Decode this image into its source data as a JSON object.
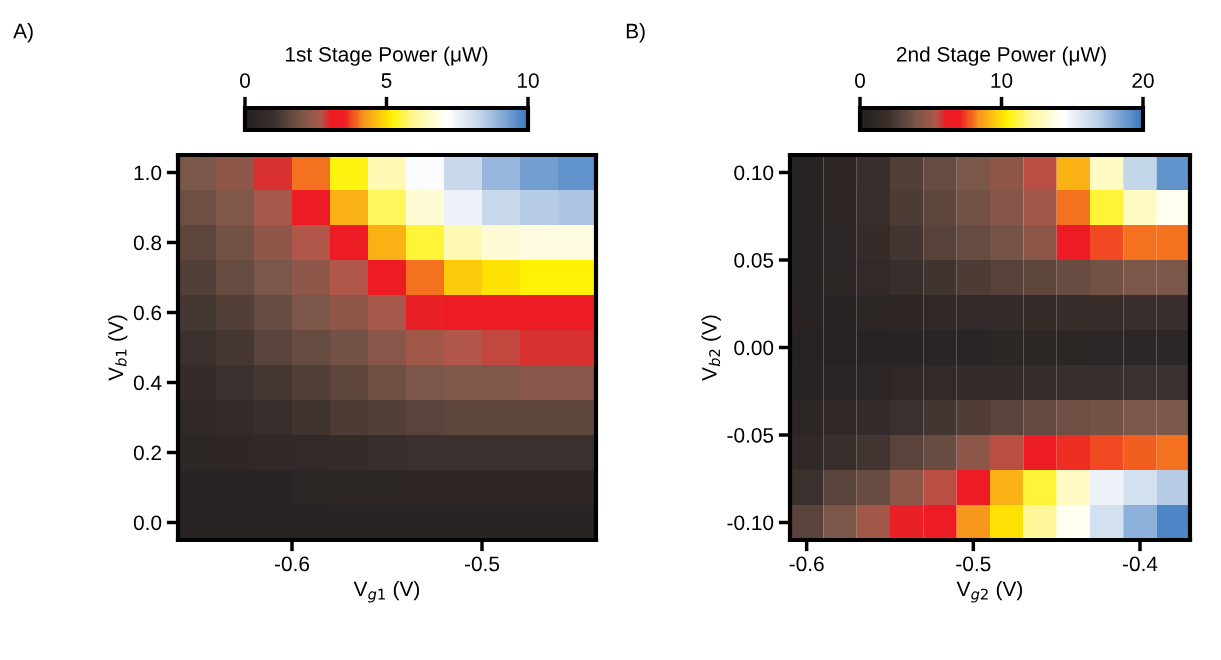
{
  "chart_data": [
    {
      "type": "heatmap",
      "title": "A)",
      "xlabel": "V$_{g1}$ (V)",
      "ylabel": "V$_{b1}$ (V)",
      "clabel": "1st Stage Power (μW)",
      "x": [
        -0.65,
        -0.63,
        -0.61,
        -0.59,
        -0.57,
        -0.55,
        -0.53,
        -0.51,
        -0.49,
        -0.47,
        -0.45
      ],
      "y": [
        0.0,
        0.1,
        0.2,
        0.3,
        0.4,
        0.5,
        0.6,
        0.7,
        0.8,
        0.9,
        1.0
      ],
      "cells": [
        [
          0.2,
          0.2,
          0.2,
          0.2,
          0.3,
          0.3,
          0.3,
          0.3,
          0.3,
          0.3,
          0.3
        ],
        [
          0.3,
          0.3,
          0.3,
          0.4,
          0.4,
          0.4,
          0.5,
          0.5,
          0.5,
          0.5,
          0.5
        ],
        [
          0.4,
          0.5,
          0.6,
          0.7,
          0.8,
          0.9,
          1.0,
          1.0,
          1.0,
          1.0,
          1.0
        ],
        [
          0.6,
          0.8,
          0.9,
          1.1,
          1.3,
          1.4,
          1.5,
          1.6,
          1.6,
          1.6,
          1.6
        ],
        [
          0.8,
          1.0,
          1.2,
          1.4,
          1.6,
          1.8,
          2.0,
          2.1,
          2.1,
          2.2,
          2.2
        ],
        [
          1.0,
          1.2,
          1.5,
          1.7,
          1.9,
          2.2,
          2.5,
          2.7,
          2.8,
          2.9,
          2.9
        ],
        [
          1.2,
          1.4,
          1.7,
          2.0,
          2.3,
          2.6,
          3.0,
          3.2,
          3.3,
          3.3,
          3.3
        ],
        [
          1.4,
          1.7,
          2.0,
          2.3,
          2.7,
          3.2,
          4.0,
          4.8,
          5.0,
          5.2,
          5.2
        ],
        [
          1.6,
          1.9,
          2.3,
          2.7,
          3.3,
          4.5,
          5.5,
          6.3,
          6.7,
          6.8,
          6.8
        ],
        [
          1.8,
          2.1,
          2.6,
          3.2,
          4.5,
          5.7,
          6.7,
          7.5,
          8.2,
          8.5,
          8.6
        ],
        [
          2.0,
          2.3,
          2.9,
          4.0,
          5.3,
          6.3,
          7.3,
          8.2,
          8.9,
          9.3,
          9.5
        ]
      ],
      "xlim": [
        -0.66,
        -0.44
      ],
      "ylim": [
        -0.05,
        1.05
      ],
      "xticks": [
        -0.6,
        -0.5
      ],
      "yticks": [
        {
          "value": 0.0,
          "label": "0.0"
        },
        0.2,
        0.4,
        0.6,
        0.8,
        {
          "value": 1.0,
          "label": "1.0"
        }
      ],
      "clim": [
        0,
        10
      ],
      "cticks": [
        0,
        5,
        10
      ]
    },
    {
      "type": "heatmap",
      "title": "B)",
      "xlabel": "V$_{g2}$ (V)",
      "ylabel": "V$_{b2}$ (V)",
      "clabel": "2nd Stage Power (μW)",
      "x": [
        -0.6,
        -0.58,
        -0.56,
        -0.54,
        -0.52,
        -0.5,
        -0.48,
        -0.46,
        -0.44,
        -0.42,
        -0.4,
        -0.38
      ],
      "y": [
        -0.1,
        -0.08,
        -0.06,
        -0.04,
        -0.02,
        0.0,
        0.02,
        0.04,
        0.06,
        0.08,
        0.1
      ],
      "cells": [
        [
          3,
          4,
          5,
          6,
          7,
          8.5,
          10,
          12,
          14,
          16,
          18,
          19.5
        ],
        [
          2,
          3,
          3.5,
          4.5,
          5.5,
          7,
          9,
          11,
          13,
          15,
          16,
          17
        ],
        [
          1.2,
          1.8,
          2.3,
          3,
          3.5,
          4.5,
          5.5,
          6.5,
          7.2,
          7.5,
          7.8,
          8
        ],
        [
          0.8,
          1.2,
          1.5,
          2,
          2.3,
          2.7,
          3,
          3.3,
          3.6,
          3.8,
          4,
          4
        ],
        [
          0.5,
          0.7,
          0.9,
          1.1,
          1.3,
          1.5,
          1.6,
          1.7,
          1.8,
          1.9,
          2,
          2
        ],
        [
          0.3,
          0.4,
          0.5,
          0.6,
          0.7,
          0.7,
          0.8,
          0.8,
          0.8,
          0.9,
          0.9,
          0.9
        ],
        [
          0.4,
          0.6,
          0.8,
          1,
          1.2,
          1.4,
          1.5,
          1.6,
          1.7,
          1.7,
          1.8,
          1.8
        ],
        [
          0.5,
          0.8,
          1.3,
          1.8,
          2.2,
          2.6,
          2.9,
          3.2,
          3.5,
          3.8,
          4,
          4
        ],
        [
          0.5,
          0.9,
          1.6,
          2.3,
          2.9,
          3.4,
          3.9,
          4.5,
          6.5,
          7.5,
          8,
          8
        ],
        [
          0.5,
          1,
          1.8,
          2.6,
          3.2,
          3.8,
          4.3,
          5,
          8,
          11,
          13,
          14
        ],
        [
          0.5,
          1,
          1.9,
          2.8,
          3.4,
          4,
          4.6,
          5.5,
          9,
          13,
          16.5,
          19
        ]
      ],
      "xlim": [
        -0.61,
        -0.37
      ],
      "ylim": [
        -0.11,
        0.11
      ],
      "xticks": [
        -0.6,
        -0.5,
        -0.4
      ],
      "yticks": [
        {
          "value": -0.1,
          "label": "-0.10"
        },
        {
          "value": -0.05,
          "label": "-0.05"
        },
        {
          "value": 0.0,
          "label": "0.00"
        },
        {
          "value": 0.05,
          "label": "0.05"
        },
        {
          "value": 0.1,
          "label": "0.10"
        }
      ],
      "clim": [
        0,
        20
      ],
      "cticks": [
        0,
        10,
        20
      ]
    }
  ]
}
